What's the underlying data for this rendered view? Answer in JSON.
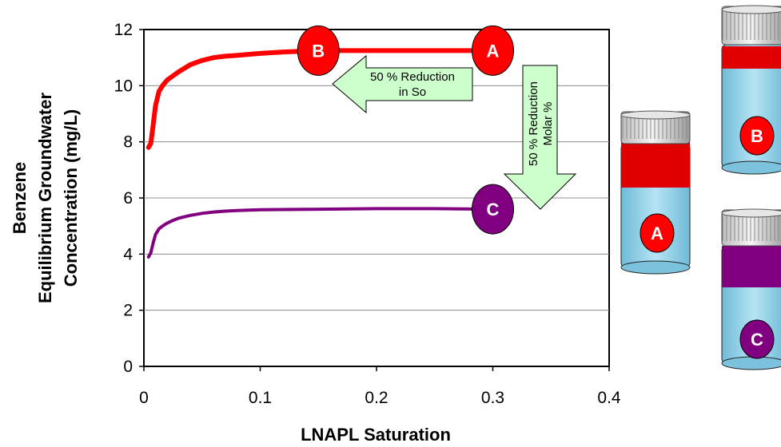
{
  "chart_data": {
    "type": "line",
    "title": "",
    "xlabel": "LNAPL Saturation",
    "ylabel_lines": [
      "Benzene",
      "Equilibrium Groundwater",
      "Concentration (mg/L)"
    ],
    "xlim": [
      0,
      0.4
    ],
    "ylim": [
      0,
      12
    ],
    "xticks": [
      "0",
      "0.1",
      "0.2",
      "0.3",
      "0.4"
    ],
    "yticks": [
      "0",
      "2",
      "4",
      "6",
      "8",
      "10",
      "12"
    ],
    "grid": "horizontal",
    "legend": "none",
    "series": [
      {
        "color": "#ff0000",
        "x": [
          0.004,
          0.006,
          0.008,
          0.01,
          0.013,
          0.016,
          0.02,
          0.025,
          0.03,
          0.04,
          0.05,
          0.06,
          0.07,
          0.08,
          0.1,
          0.12,
          0.15,
          0.2,
          0.25,
          0.3
        ],
        "y": [
          7.8,
          7.95,
          8.6,
          9.3,
          9.8,
          10.0,
          10.2,
          10.35,
          10.5,
          10.75,
          10.9,
          11.0,
          11.05,
          11.08,
          11.15,
          11.2,
          11.25,
          11.25,
          11.25,
          11.25
        ]
      },
      {
        "color": "#800080",
        "x": [
          0.004,
          0.006,
          0.008,
          0.01,
          0.013,
          0.016,
          0.02,
          0.025,
          0.03,
          0.04,
          0.05,
          0.06,
          0.07,
          0.08,
          0.1,
          0.15,
          0.2,
          0.25,
          0.3
        ],
        "y": [
          3.9,
          4.05,
          4.4,
          4.7,
          4.9,
          5.0,
          5.1,
          5.2,
          5.28,
          5.38,
          5.45,
          5.5,
          5.53,
          5.55,
          5.58,
          5.6,
          5.62,
          5.62,
          5.6
        ]
      }
    ],
    "markers": [
      {
        "label": "A",
        "x": 0.3,
        "y": 11.25,
        "color": "#ff0000"
      },
      {
        "label": "B",
        "x": 0.15,
        "y": 11.25,
        "color": "#ff0000"
      },
      {
        "label": "C",
        "x": 0.3,
        "y": 5.6,
        "color": "#800080"
      }
    ],
    "annotations": [
      {
        "lines": [
          "50 % Reduction",
          "in So"
        ],
        "direction": "left"
      },
      {
        "lines": [
          "50 % Reduction",
          "Molar %"
        ],
        "direction": "down"
      }
    ]
  },
  "vials": [
    {
      "label": "A",
      "band_color": "#e00000",
      "marker_color": "#ff0000"
    },
    {
      "label": "B",
      "band_color": "#e00000",
      "marker_color": "#ff0000"
    },
    {
      "label": "C",
      "band_color": "#800080",
      "marker_color": "#800080"
    }
  ]
}
